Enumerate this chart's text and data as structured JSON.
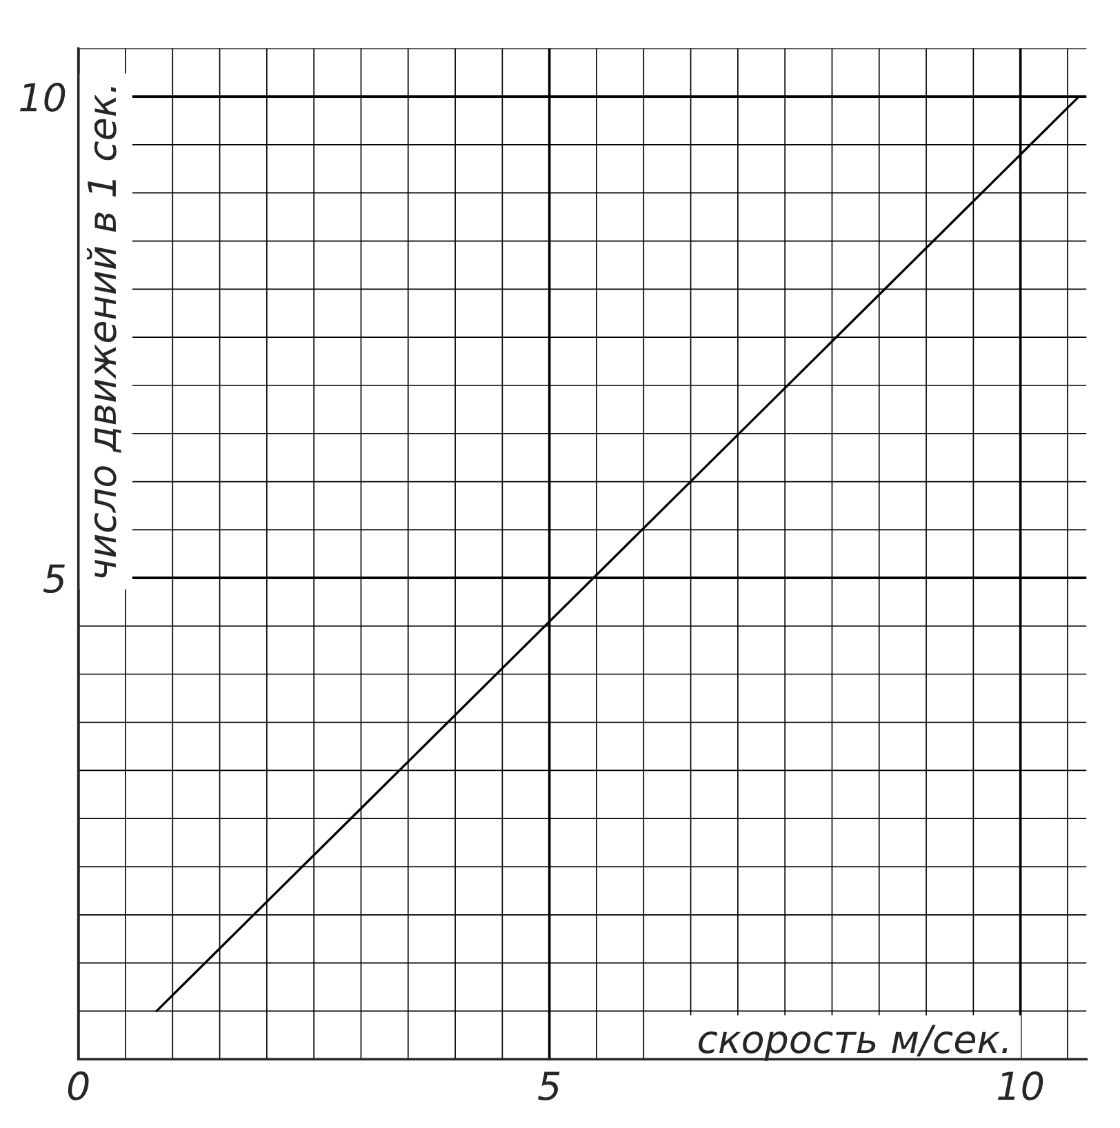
{
  "chart_data": {
    "type": "line",
    "xlabel": "скорость м/сек.",
    "ylabel": "число движений в 1 сек.",
    "series": [
      {
        "color": "#000000",
        "x": [
          0.83,
          10.62
        ],
        "values": [
          0.5,
          10
        ]
      }
    ],
    "xlim": [
      0,
      10.7
    ],
    "ylim": [
      0,
      10.5
    ],
    "xticks": [
      0,
      {
        "value": 0.5,
        "label": null
      },
      {
        "value": 1,
        "label": null
      },
      {
        "value": 1.5,
        "label": null
      },
      {
        "value": 2,
        "label": null
      },
      {
        "value": 2.5,
        "label": null
      },
      {
        "value": 3,
        "label": null
      },
      {
        "value": 3.5,
        "label": null
      },
      {
        "value": 4,
        "label": null
      },
      {
        "value": 4.5,
        "label": null
      },
      5,
      {
        "value": 5.5,
        "label": null
      },
      {
        "value": 6,
        "label": null
      },
      {
        "value": 6.5,
        "label": null
      },
      {
        "value": 7,
        "label": null
      },
      {
        "value": 7.5,
        "label": null
      },
      {
        "value": 8,
        "label": null
      },
      {
        "value": 8.5,
        "label": null
      },
      {
        "value": 9,
        "label": null
      },
      {
        "value": 9.5,
        "label": null
      },
      10,
      {
        "value": 10.5,
        "label": null
      }
    ],
    "yticks": [
      {
        "value": 0.5,
        "label": null
      },
      {
        "value": 1,
        "label": null
      },
      {
        "value": 1.5,
        "label": null
      },
      {
        "value": 2,
        "label": null
      },
      {
        "value": 2.5,
        "label": null
      },
      {
        "value": 3,
        "label": null
      },
      {
        "value": 3.5,
        "label": null
      },
      {
        "value": 4,
        "label": null
      },
      {
        "value": 4.5,
        "label": null
      },
      5,
      {
        "value": 5.5,
        "label": null
      },
      {
        "value": 6,
        "label": null
      },
      {
        "value": 6.5,
        "label": null
      },
      {
        "value": 7,
        "label": null
      },
      {
        "value": 7.5,
        "label": null
      },
      {
        "value": 8,
        "label": null
      },
      {
        "value": 8.5,
        "label": null
      },
      {
        "value": 9,
        "label": null
      },
      {
        "value": 9.5,
        "label": null
      },
      10,
      {
        "value": 10.5,
        "label": null
      }
    ],
    "grid": true,
    "line_style": "solid"
  }
}
